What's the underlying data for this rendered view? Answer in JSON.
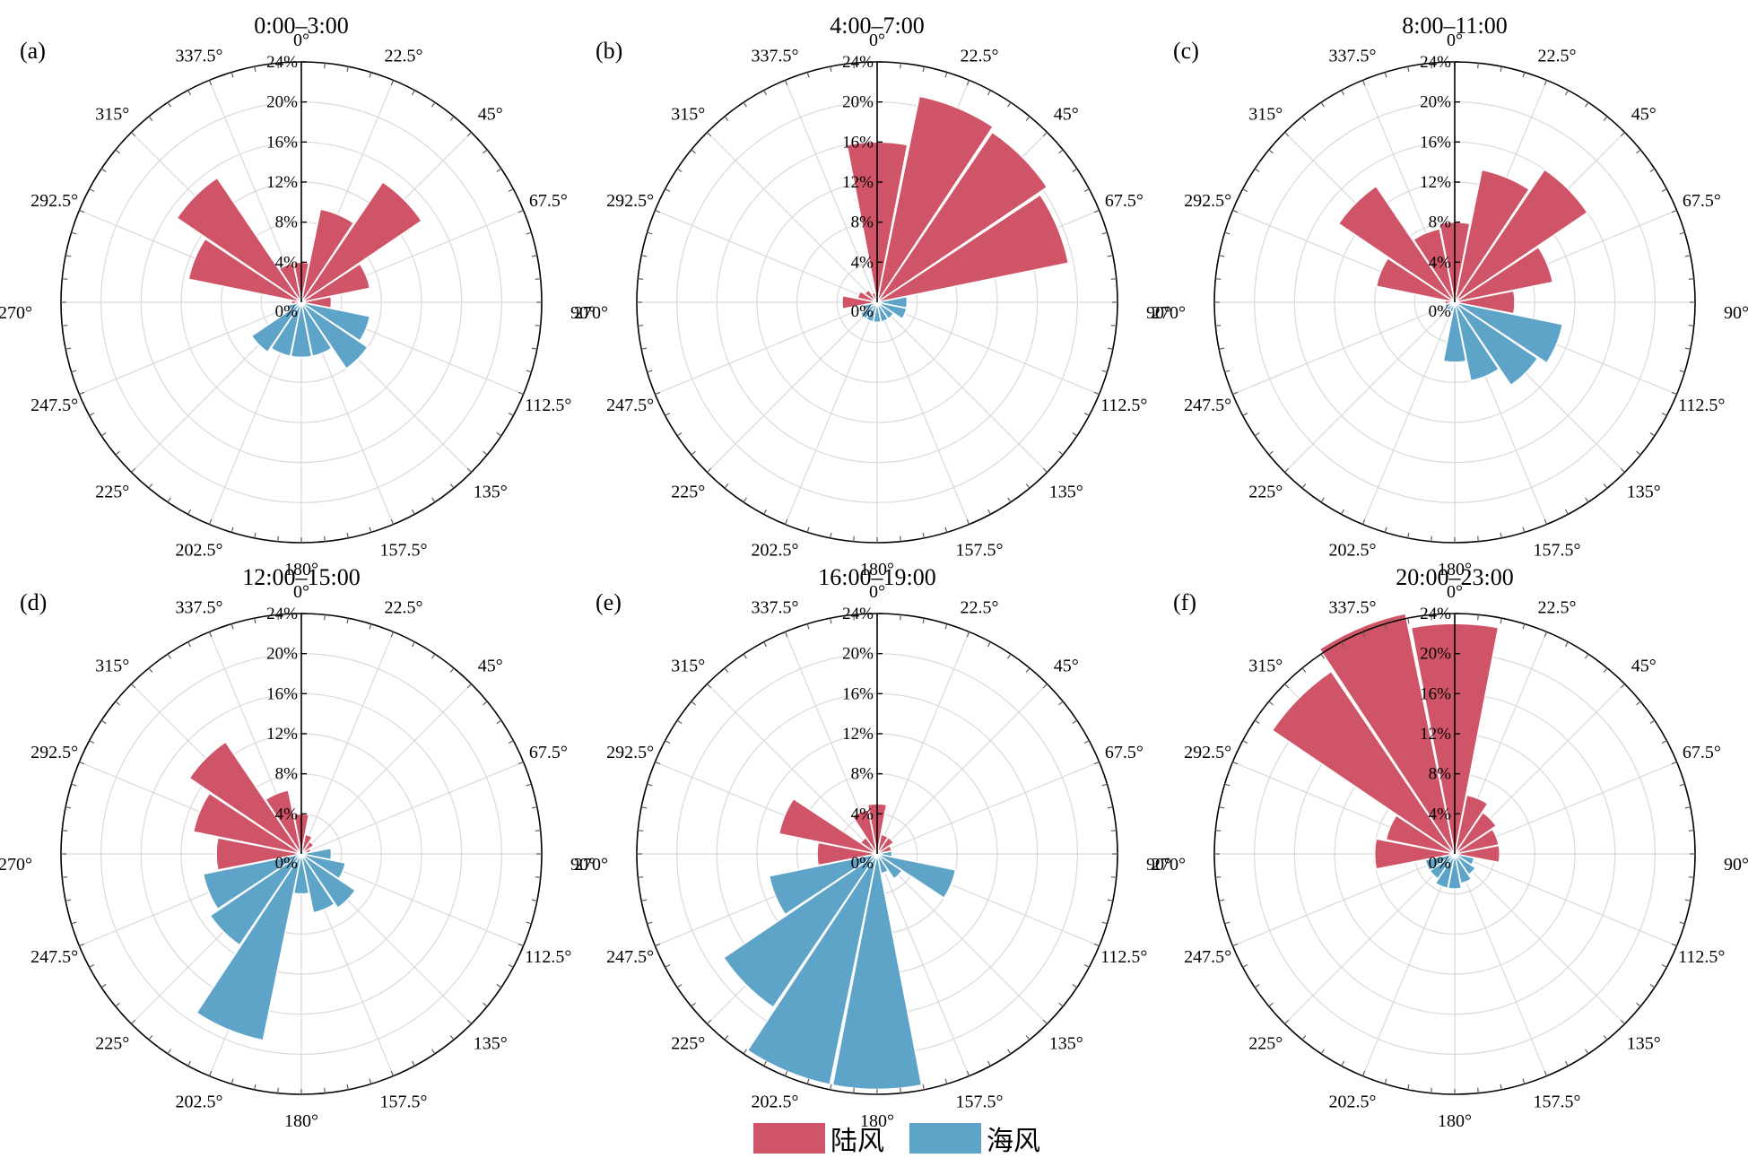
{
  "chart_data": {
    "type": "polar-bar",
    "rmax": 24,
    "radial_ticks": [
      "0%",
      "4%",
      "8%",
      "12%",
      "16%",
      "20%",
      "24%"
    ],
    "angle_ticks": [
      "0°",
      "22.5°",
      "45°",
      "67.5°",
      "90°",
      "112.5°",
      "135°",
      "157.5°",
      "180°",
      "202.5°",
      "225°",
      "247.5°",
      "270°",
      "292.5°",
      "315°",
      "337.5°"
    ],
    "directions_deg": [
      0,
      22.5,
      45,
      67.5,
      90,
      112.5,
      135,
      157.5,
      180,
      202.5,
      225,
      247.5,
      270,
      292.5,
      315,
      337.5
    ],
    "legend": {
      "land_label": "陆风",
      "sea_label": "海风"
    },
    "colors": {
      "land": "#cf5468",
      "sea": "#5ea4c8"
    },
    "panels": [
      {
        "letter": "(a)",
        "title": "0:00–3:00",
        "land": [
          4.0,
          9.5,
          14.5,
          7.0,
          3.0,
          0,
          0,
          0,
          0,
          0,
          0,
          0,
          1.0,
          11.5,
          15.0,
          4.0
        ],
        "sea": [
          0,
          0,
          0,
          0,
          0,
          7.0,
          8.0,
          5.5,
          5.5,
          5.5,
          6.0,
          1.5,
          0,
          0,
          0,
          0
        ]
      },
      {
        "letter": "(b)",
        "title": "4:00–7:00",
        "land": [
          16.0,
          21.0,
          20.5,
          19.5,
          0,
          0,
          0,
          0,
          0,
          0,
          0,
          0,
          3.5,
          2.0,
          1.5,
          1.0
        ],
        "sea": [
          0,
          0,
          0,
          0,
          3.0,
          3.0,
          2.0,
          2.0,
          2.0,
          2.0,
          2.0,
          1.5,
          0,
          0,
          0,
          0
        ]
      },
      {
        "letter": "(c)",
        "title": "8:00–11:00",
        "land": [
          8.0,
          13.5,
          16.0,
          10.0,
          6.0,
          0,
          0,
          0,
          0,
          0,
          0,
          0,
          1.0,
          8.0,
          14.0,
          7.5
        ],
        "sea": [
          0,
          0,
          0,
          0,
          0,
          11.0,
          10.0,
          8.0,
          6.0,
          1.0,
          1.0,
          1.0,
          0,
          0,
          0,
          0
        ]
      },
      {
        "letter": "(d)",
        "title": "12:00–15:00",
        "land": [
          4.0,
          2.0,
          1.5,
          1.0,
          0,
          0,
          0,
          0,
          0,
          0,
          0,
          0,
          8.5,
          11.0,
          13.5,
          6.5
        ],
        "sea": [
          0,
          0,
          0,
          0,
          3.0,
          4.5,
          6.5,
          6.0,
          4.0,
          19.0,
          11.0,
          10.0,
          0,
          0,
          0,
          0
        ]
      },
      {
        "letter": "(e)",
        "title": "16:00–19:00",
        "land": [
          5.0,
          2.0,
          2.0,
          1.5,
          0,
          0,
          0,
          0,
          0,
          0,
          0,
          0,
          6.0,
          10.0,
          2.0,
          4.5
        ],
        "sea": [
          0,
          0,
          0,
          0,
          1.5,
          8.0,
          3.0,
          2.0,
          23.5,
          23.5,
          18.5,
          11.0,
          0,
          0,
          0,
          0
        ]
      },
      {
        "letter": "(f)",
        "title": "20:00–23:00",
        "land": [
          23.0,
          6.0,
          5.0,
          4.5,
          4.5,
          0,
          0,
          0,
          0,
          0,
          0,
          0,
          8.0,
          7.0,
          22.0,
          24.5
        ],
        "sea": [
          0,
          0,
          0,
          0,
          0,
          2.0,
          2.5,
          3.0,
          3.5,
          3.5,
          3.0,
          3.0,
          0,
          0,
          0,
          0
        ]
      }
    ]
  }
}
